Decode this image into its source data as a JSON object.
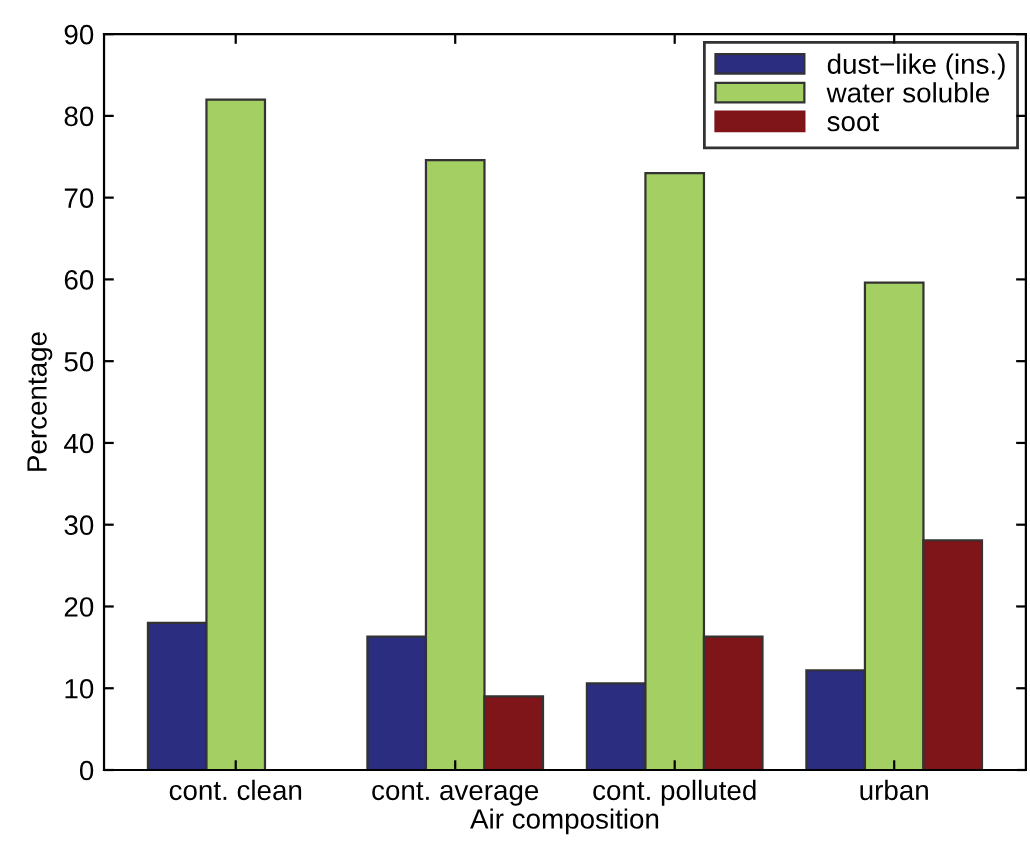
{
  "chart_data": {
    "type": "bar",
    "xlabel": "Air composition",
    "ylabel": "Percentage",
    "categories": [
      "cont. clean",
      "cont. average",
      "cont. polluted",
      "urban"
    ],
    "series": [
      {
        "name": "dust−like (ins.)",
        "color": "#2b2d80",
        "values": [
          18.0,
          16.3,
          10.6,
          12.2
        ]
      },
      {
        "name": "water soluble",
        "color": "#a4cf62",
        "values": [
          82.0,
          74.6,
          73.0,
          59.6
        ]
      },
      {
        "name": "soot",
        "color": "#7f1518",
        "values": [
          0,
          9.0,
          16.3,
          28.1
        ]
      }
    ],
    "ylim": [
      0,
      90
    ],
    "yticks": [
      0,
      10,
      20,
      30,
      40,
      50,
      60,
      70,
      80,
      90
    ],
    "legend": "top right",
    "grid": false
  }
}
